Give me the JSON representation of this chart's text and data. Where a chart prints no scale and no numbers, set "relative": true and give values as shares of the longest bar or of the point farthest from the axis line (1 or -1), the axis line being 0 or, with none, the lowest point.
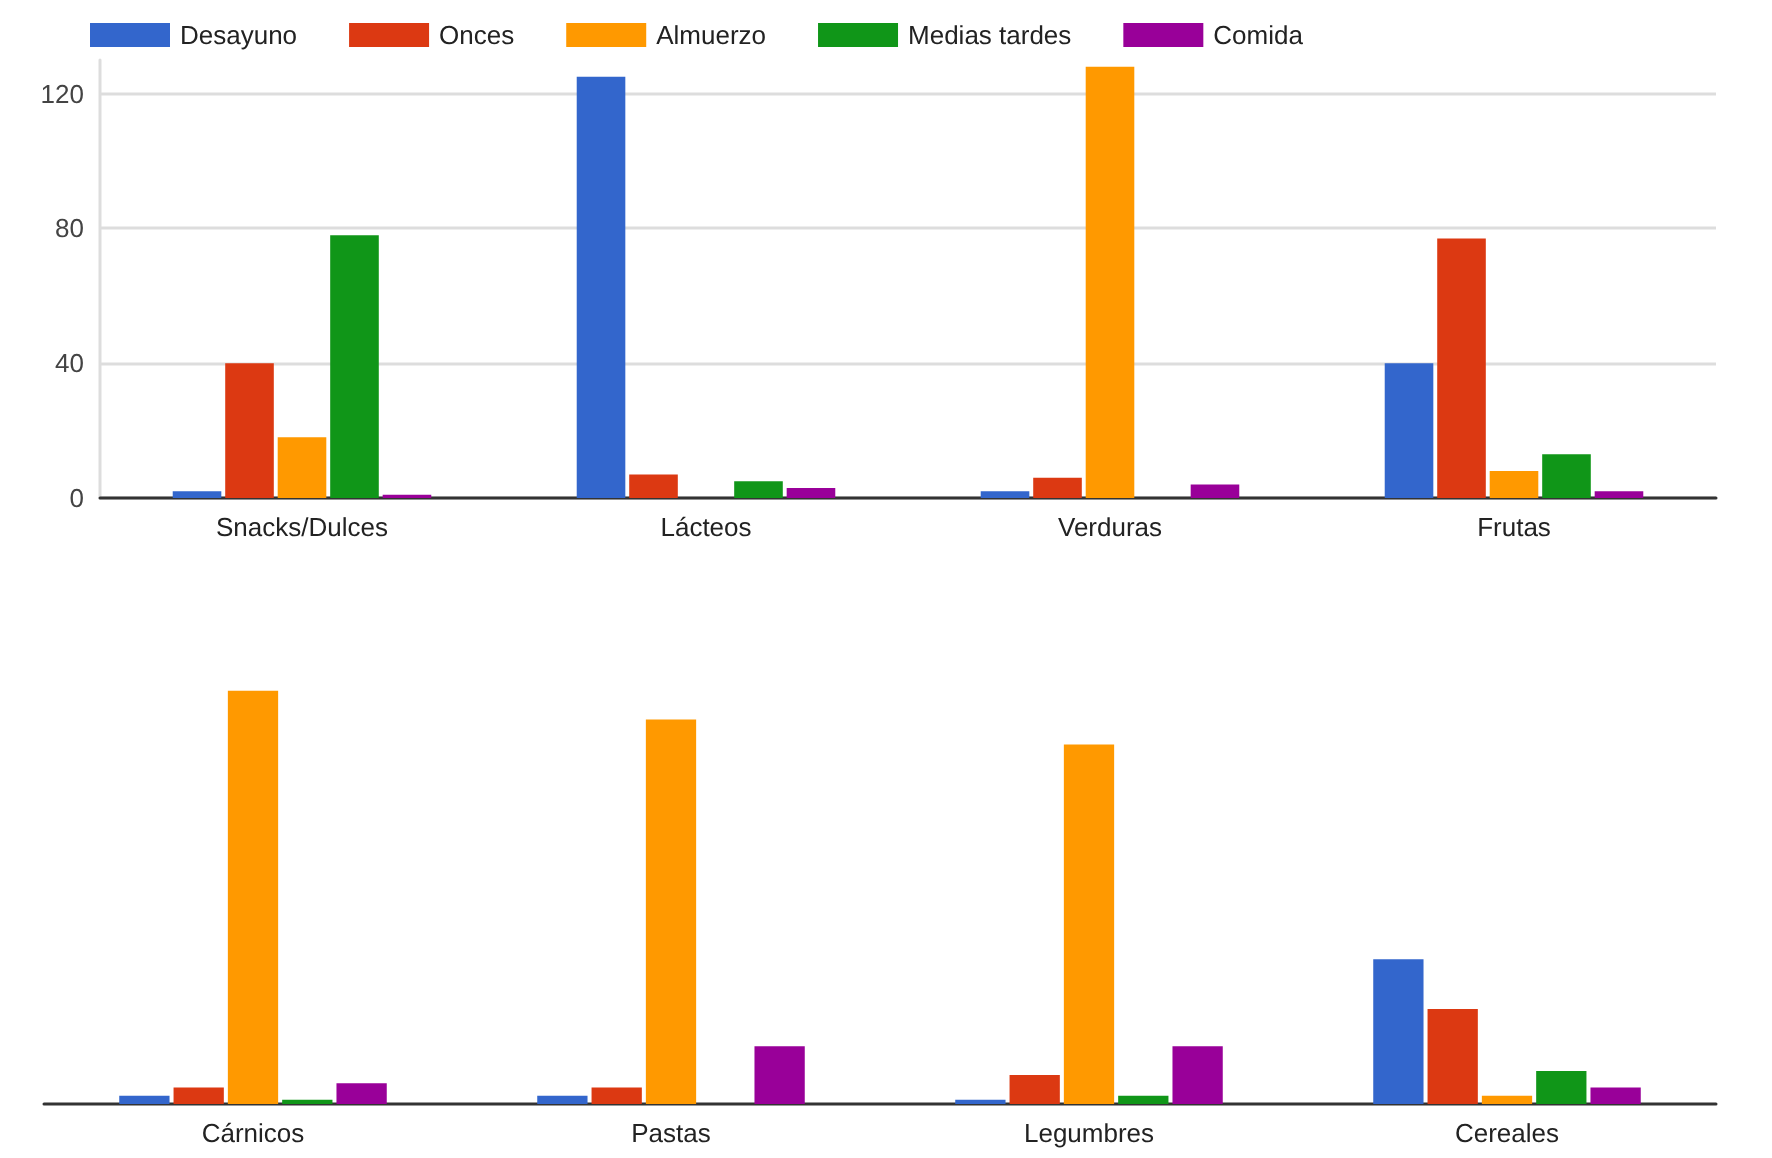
{
  "chart_data": [
    {
      "type": "bar",
      "categories": [
        "Snacks/Dulces",
        "Lácteos",
        "Verduras",
        "Frutas"
      ],
      "series": [
        {
          "name": "Desayuno",
          "color": "#3366cc",
          "values": [
            2,
            125,
            2,
            40
          ]
        },
        {
          "name": "Onces",
          "color": "#dc3912",
          "values": [
            40,
            7,
            6,
            77
          ]
        },
        {
          "name": "Almuerzo",
          "color": "#ff9900",
          "values": [
            18,
            0,
            128,
            8
          ]
        },
        {
          "name": "Medias tardes",
          "color": "#109618",
          "values": [
            78,
            5,
            0,
            13
          ]
        },
        {
          "name": "Comida",
          "color": "#990099",
          "values": [
            1,
            3,
            4,
            2
          ]
        }
      ],
      "ylim": [
        0,
        130
      ],
      "yticks": [
        0,
        40,
        80,
        120
      ],
      "grid": "y",
      "legend": "top left"
    },
    {
      "type": "bar",
      "categories": [
        "Cárnicos",
        "Pastas",
        "Legumbres",
        "Cereales"
      ],
      "series": [
        {
          "color": "#3366cc",
          "values": [
            0.02,
            0.02,
            0.01,
            0.35
          ]
        },
        {
          "color": "#dc3912",
          "values": [
            0.04,
            0.04,
            0.07,
            0.23
          ]
        },
        {
          "color": "#ff9900",
          "values": [
            1,
            0.93,
            0.87,
            0.02
          ]
        },
        {
          "color": "#109618",
          "values": [
            0.01,
            0,
            0.02,
            0.08
          ]
        },
        {
          "color": "#990099",
          "values": [
            0.05,
            0.14,
            0.14,
            0.04
          ]
        }
      ],
      "relative": true
    }
  ]
}
